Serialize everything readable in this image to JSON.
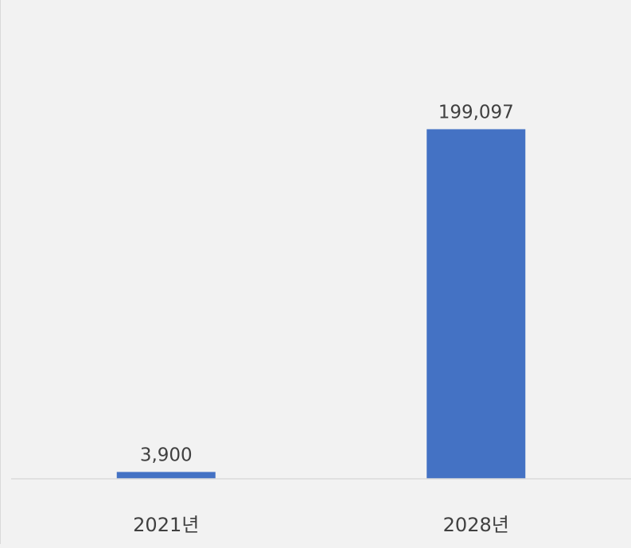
{
  "chart_data": {
    "type": "bar",
    "categories": [
      "2021년",
      "2028년"
    ],
    "values": [
      3900,
      199097
    ],
    "data_labels": [
      "3,900",
      "199,097"
    ],
    "title": "",
    "xlabel": "",
    "ylabel": "",
    "ylim": [
      0,
      260000
    ],
    "grid": false,
    "legend": "none",
    "bar_color": "#4472c4",
    "background_color": "#f2f2f2",
    "axis_color": "#d9d9d9",
    "text_color": "#404040"
  }
}
